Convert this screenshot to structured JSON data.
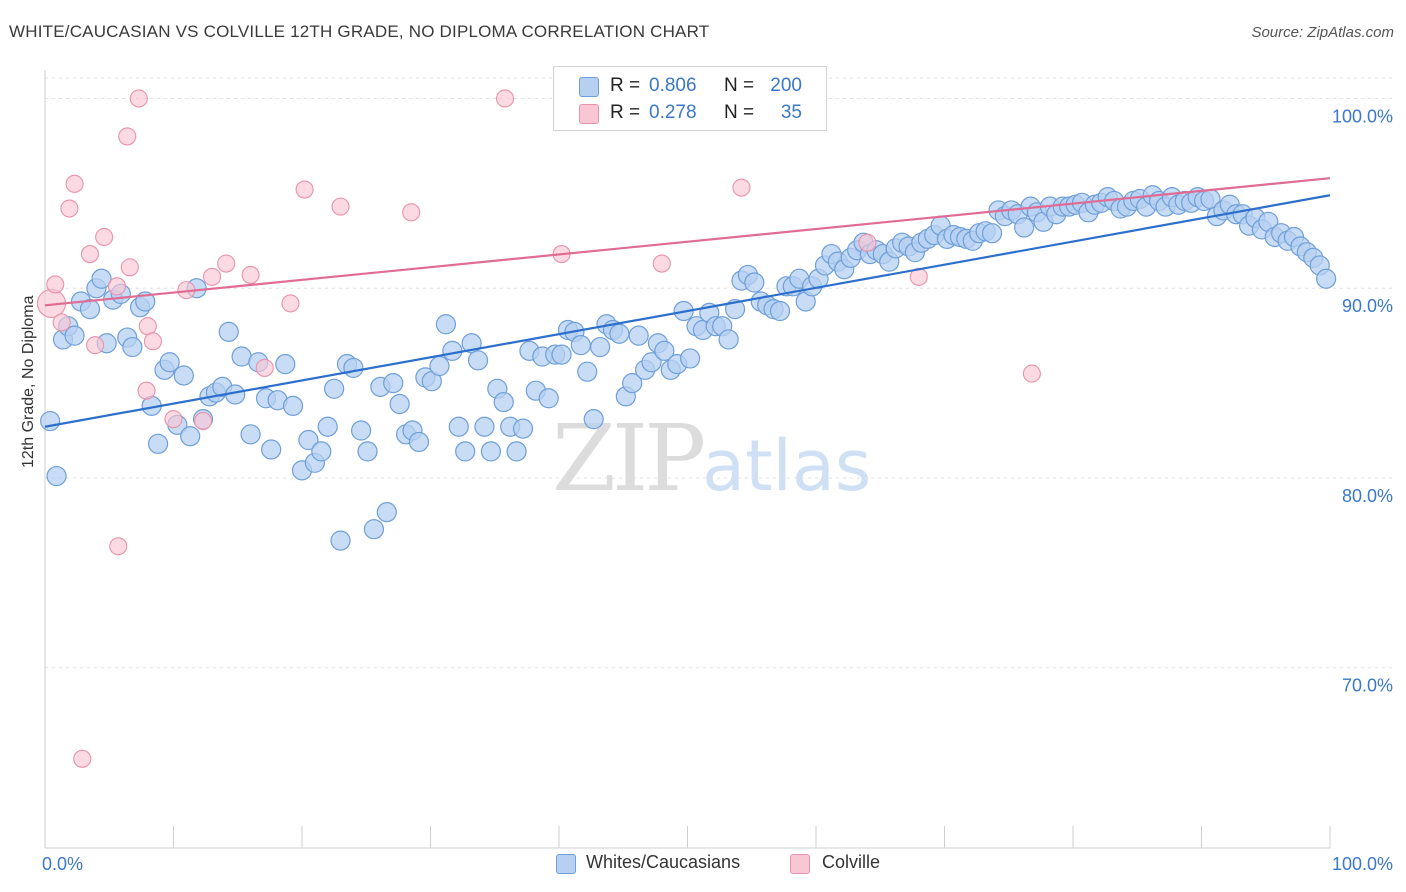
{
  "title": "WHITE/CAUCASIAN VS COLVILLE 12TH GRADE, NO DIPLOMA CORRELATION CHART",
  "source": "Source: ZipAtlas.com",
  "watermark": {
    "zip": "ZIP",
    "atlas": "atlas"
  },
  "colors": {
    "blue_fill": "#b5d0f1",
    "blue_stroke": "#6f9fd8",
    "blue_line": "#2c6fcc",
    "pink_fill": "#f9c6d4",
    "pink_stroke": "#e892ab",
    "pink_line": "#e06b93",
    "grid": "#e0e0e0",
    "axis_text": "#3a78c9"
  },
  "legend": {
    "rows": [
      {
        "r_label": "R =",
        "r_value": "0.806",
        "n_label": "N =",
        "n_value": "200",
        "color": "#b5d0f1"
      },
      {
        "r_label": "R =",
        "r_value": "0.278",
        "n_label": "N =",
        "n_value": "35",
        "color": "#f9c6d4"
      }
    ]
  },
  "bottom_legend": [
    {
      "label": "Whites/Caucasians",
      "color": "#b5d0f1"
    },
    {
      "label": "Colville",
      "color": "#f9c6d4"
    }
  ],
  "chart_data": {
    "type": "scatter",
    "title": "WHITE/CAUCASIAN VS COLVILLE 12TH GRADE, NO DIPLOMA CORRELATION CHART",
    "xlabel": "",
    "ylabel": "12th Grade, No Diploma",
    "xlim": [
      0,
      100
    ],
    "ylim": [
      60.5,
      101.5
    ],
    "x_tick_labels": [
      "0.0%",
      "100.0%"
    ],
    "y_ticks": [
      70,
      80,
      90,
      100
    ],
    "y_tick_labels": [
      "70.0%",
      "80.0%",
      "90.0%",
      "100.0%"
    ],
    "grid": "horizontal-dashed",
    "legend_position": "top-center",
    "series": [
      {
        "name": "Whites/Caucasians",
        "color": "#b5d0f1",
        "trend": {
          "x0": 0,
          "y0": 82.7,
          "x1": 100,
          "y1": 94.9
        },
        "points": [
          [
            0.4,
            83
          ],
          [
            0.9,
            80.1
          ],
          [
            1.4,
            87.3
          ],
          [
            1.8,
            88
          ],
          [
            2.3,
            87.5
          ],
          [
            2.8,
            89.3
          ],
          [
            3.5,
            88.9
          ],
          [
            4.0,
            90
          ],
          [
            4.4,
            90.5
          ],
          [
            4.8,
            87.1
          ],
          [
            5.3,
            89.4
          ],
          [
            5.9,
            89.7
          ],
          [
            6.4,
            87.4
          ],
          [
            6.8,
            86.9
          ],
          [
            7.4,
            89
          ],
          [
            7.8,
            89.3
          ],
          [
            8.3,
            83.8
          ],
          [
            8.8,
            81.8
          ],
          [
            9.3,
            85.7
          ],
          [
            9.7,
            86.1
          ],
          [
            10.3,
            82.8
          ],
          [
            10.8,
            85.4
          ],
          [
            11.3,
            82.2
          ],
          [
            11.8,
            90
          ],
          [
            12.3,
            83.1
          ],
          [
            12.8,
            84.3
          ],
          [
            13.3,
            84.5
          ],
          [
            13.8,
            84.8
          ],
          [
            14.3,
            87.7
          ],
          [
            14.8,
            84.4
          ],
          [
            15.3,
            86.4
          ],
          [
            16.0,
            82.3
          ],
          [
            16.6,
            86.1
          ],
          [
            17.2,
            84.2
          ],
          [
            17.6,
            81.5
          ],
          [
            18.1,
            84.1
          ],
          [
            18.7,
            86
          ],
          [
            19.3,
            83.8
          ],
          [
            20.0,
            80.4
          ],
          [
            20.5,
            82
          ],
          [
            21.0,
            80.8
          ],
          [
            21.5,
            81.4
          ],
          [
            22.0,
            82.7
          ],
          [
            22.5,
            84.7
          ],
          [
            23.0,
            76.7
          ],
          [
            23.5,
            86
          ],
          [
            24.0,
            85.8
          ],
          [
            24.6,
            82.5
          ],
          [
            25.1,
            81.4
          ],
          [
            25.6,
            77.3
          ],
          [
            26.1,
            84.8
          ],
          [
            26.6,
            78.2
          ],
          [
            27.1,
            85
          ],
          [
            27.6,
            83.9
          ],
          [
            28.1,
            82.3
          ],
          [
            28.6,
            82.5
          ],
          [
            29.1,
            81.9
          ],
          [
            29.6,
            85.3
          ],
          [
            30.1,
            85.1
          ],
          [
            30.7,
            85.9
          ],
          [
            31.2,
            88.1
          ],
          [
            31.7,
            86.7
          ],
          [
            32.2,
            82.7
          ],
          [
            32.7,
            81.4
          ],
          [
            33.2,
            87.1
          ],
          [
            33.7,
            86.2
          ],
          [
            34.2,
            82.7
          ],
          [
            34.7,
            81.4
          ],
          [
            35.2,
            84.7
          ],
          [
            35.7,
            84
          ],
          [
            36.2,
            82.7
          ],
          [
            36.7,
            81.4
          ],
          [
            37.2,
            82.6
          ],
          [
            37.7,
            86.7
          ],
          [
            38.2,
            84.6
          ],
          [
            38.7,
            86.4
          ],
          [
            39.2,
            84.2
          ],
          [
            39.7,
            86.5
          ],
          [
            40.2,
            86.5
          ],
          [
            40.7,
            87.8
          ],
          [
            41.2,
            87.7
          ],
          [
            41.7,
            87
          ],
          [
            42.2,
            85.6
          ],
          [
            42.7,
            83.1
          ],
          [
            43.2,
            86.9
          ],
          [
            43.7,
            88.1
          ],
          [
            44.2,
            87.8
          ],
          [
            44.7,
            87.6
          ],
          [
            45.2,
            84.3
          ],
          [
            45.7,
            85
          ],
          [
            46.2,
            87.5
          ],
          [
            46.7,
            85.7
          ],
          [
            47.2,
            86.1
          ],
          [
            47.7,
            87.1
          ],
          [
            48.2,
            86.7
          ],
          [
            48.7,
            85.7
          ],
          [
            49.2,
            86
          ],
          [
            49.7,
            88.8
          ],
          [
            50.2,
            86.3
          ],
          [
            50.7,
            88
          ],
          [
            51.2,
            87.8
          ],
          [
            51.7,
            88.7
          ],
          [
            52.2,
            88
          ],
          [
            52.7,
            88
          ],
          [
            53.2,
            87.3
          ],
          [
            53.7,
            88.9
          ],
          [
            54.2,
            90.4
          ],
          [
            54.7,
            90.7
          ],
          [
            55.2,
            90.3
          ],
          [
            55.7,
            89.3
          ],
          [
            56.2,
            89.1
          ],
          [
            56.7,
            88.9
          ],
          [
            57.2,
            88.8
          ],
          [
            57.7,
            90.1
          ],
          [
            58.2,
            90.1
          ],
          [
            58.7,
            90.5
          ],
          [
            59.2,
            89.3
          ],
          [
            59.7,
            90.1
          ],
          [
            60.2,
            90.5
          ],
          [
            60.7,
            91.2
          ],
          [
            61.2,
            91.8
          ],
          [
            61.7,
            91.4
          ],
          [
            62.2,
            91
          ],
          [
            62.7,
            91.6
          ],
          [
            63.2,
            92
          ],
          [
            63.7,
            92.4
          ],
          [
            64.2,
            91.8
          ],
          [
            64.7,
            92
          ],
          [
            65.2,
            91.8
          ],
          [
            65.7,
            91.4
          ],
          [
            66.2,
            92.1
          ],
          [
            66.7,
            92.4
          ],
          [
            67.2,
            92.2
          ],
          [
            67.7,
            91.9
          ],
          [
            68.2,
            92.4
          ],
          [
            68.7,
            92.6
          ],
          [
            69.2,
            92.8
          ],
          [
            69.7,
            93.3
          ],
          [
            70.2,
            92.6
          ],
          [
            70.7,
            92.8
          ],
          [
            71.2,
            92.7
          ],
          [
            71.7,
            92.6
          ],
          [
            72.2,
            92.5
          ],
          [
            72.7,
            92.9
          ],
          [
            73.2,
            93
          ],
          [
            73.7,
            92.9
          ],
          [
            74.2,
            94.1
          ],
          [
            74.7,
            93.8
          ],
          [
            75.2,
            94.1
          ],
          [
            75.7,
            93.9
          ],
          [
            76.2,
            93.2
          ],
          [
            76.7,
            94.3
          ],
          [
            77.2,
            94
          ],
          [
            77.7,
            93.5
          ],
          [
            78.2,
            94.3
          ],
          [
            78.7,
            93.9
          ],
          [
            79.2,
            94.3
          ],
          [
            79.7,
            94.3
          ],
          [
            80.2,
            94.4
          ],
          [
            80.7,
            94.5
          ],
          [
            81.2,
            94
          ],
          [
            81.7,
            94.4
          ],
          [
            82.2,
            94.5
          ],
          [
            82.7,
            94.8
          ],
          [
            83.2,
            94.6
          ],
          [
            83.7,
            94.2
          ],
          [
            84.2,
            94.3
          ],
          [
            84.7,
            94.6
          ],
          [
            85.2,
            94.7
          ],
          [
            85.7,
            94.3
          ],
          [
            86.2,
            94.9
          ],
          [
            86.7,
            94.6
          ],
          [
            87.2,
            94.3
          ],
          [
            87.7,
            94.8
          ],
          [
            88.2,
            94.4
          ],
          [
            88.7,
            94.6
          ],
          [
            89.2,
            94.5
          ],
          [
            89.7,
            94.8
          ],
          [
            90.2,
            94.6
          ],
          [
            90.7,
            94.7
          ],
          [
            91.2,
            93.8
          ],
          [
            91.7,
            94.1
          ],
          [
            92.2,
            94.4
          ],
          [
            92.7,
            93.9
          ],
          [
            93.2,
            93.9
          ],
          [
            93.7,
            93.3
          ],
          [
            94.2,
            93.7
          ],
          [
            94.7,
            93.1
          ],
          [
            95.2,
            93.5
          ],
          [
            95.7,
            92.7
          ],
          [
            96.2,
            92.9
          ],
          [
            96.7,
            92.5
          ],
          [
            97.2,
            92.7
          ],
          [
            97.7,
            92.2
          ],
          [
            98.2,
            91.9
          ],
          [
            98.7,
            91.6
          ],
          [
            99.2,
            91.2
          ],
          [
            99.7,
            90.5
          ]
        ]
      },
      {
        "name": "Colville",
        "color": "#f9c6d4",
        "trend": {
          "x0": 0,
          "y0": 89.1,
          "x1": 100,
          "y1": 95.8
        },
        "points": [
          [
            0.5,
            89.2
          ],
          [
            0.8,
            90.2
          ],
          [
            1.3,
            88.2
          ],
          [
            1.9,
            94.2
          ],
          [
            2.3,
            95.5
          ],
          [
            2.9,
            65.2
          ],
          [
            3.5,
            91.8
          ],
          [
            3.9,
            87
          ],
          [
            4.6,
            92.7
          ],
          [
            5.6,
            90.1
          ],
          [
            5.7,
            76.4
          ],
          [
            6.4,
            98
          ],
          [
            6.6,
            91.1
          ],
          [
            7.3,
            100
          ],
          [
            7.9,
            84.6
          ],
          [
            8.0,
            88
          ],
          [
            8.4,
            87.2
          ],
          [
            10.0,
            83.1
          ],
          [
            11.0,
            89.9
          ],
          [
            12.3,
            83
          ],
          [
            13.0,
            90.6
          ],
          [
            14.1,
            91.3
          ],
          [
            16.0,
            90.7
          ],
          [
            17.1,
            85.8
          ],
          [
            19.1,
            89.2
          ],
          [
            20.2,
            95.2
          ],
          [
            23.0,
            94.3
          ],
          [
            28.5,
            94
          ],
          [
            35.8,
            100
          ],
          [
            40.2,
            91.8
          ],
          [
            48.0,
            91.3
          ],
          [
            54.2,
            95.3
          ],
          [
            64.0,
            92.4
          ],
          [
            68.0,
            90.6
          ],
          [
            76.8,
            85.5
          ]
        ]
      }
    ]
  }
}
